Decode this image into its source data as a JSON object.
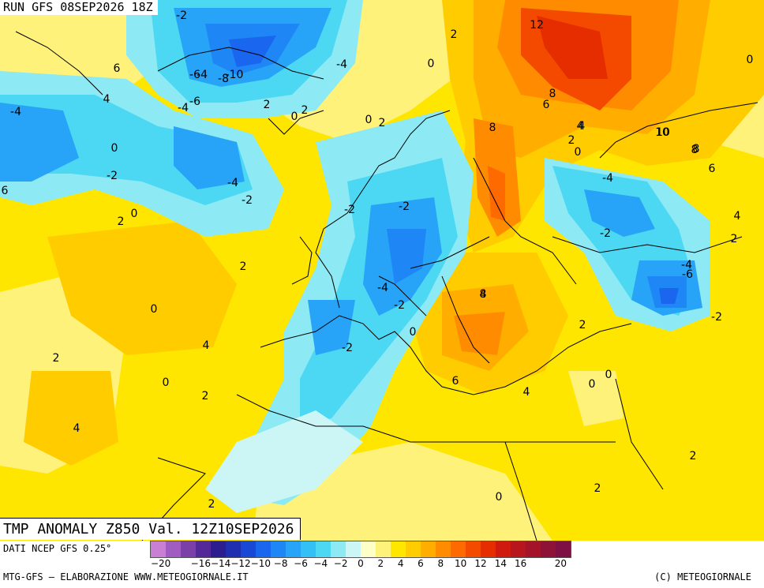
{
  "map": {
    "run_label": "RUN GFS 08SEP2026 18Z",
    "title": "TMP ANOMALY Z850 Val. 12Z10SEP2026",
    "contour_labels": [
      "-2",
      "-6",
      "-4",
      "-8",
      "-10",
      "-4",
      "6",
      "4",
      "-4",
      "-6",
      "-4",
      "0",
      "2",
      "0",
      "2",
      "0",
      "-2",
      "-4",
      "-2",
      "6",
      "0",
      "2",
      "2",
      "0",
      "4",
      "2",
      "0",
      "2",
      "4",
      "2",
      "0",
      "2",
      "-2",
      "-2",
      "-4",
      "-2",
      "0",
      "-2",
      "8",
      "4",
      "10",
      "12",
      "4",
      "8",
      "6",
      "8",
      "4",
      "2",
      "0",
      "10",
      "8",
      "6",
      "-4",
      "-2",
      "4",
      "2",
      "-4",
      "-6",
      "-2",
      "2",
      "8",
      "6",
      "4",
      "0",
      "0",
      "2",
      "2",
      "0",
      "2",
      "0"
    ]
  },
  "legend": {
    "source": "DATI NCEP GFS 0.25°",
    "ticks": [
      "-20",
      "-18",
      "-16",
      "-14",
      "-12",
      "-10",
      "-8",
      "-6",
      "-4",
      "-2",
      "0",
      "2",
      "4",
      "6",
      "8",
      "10",
      "12",
      "14",
      "16",
      "18",
      "20"
    ],
    "tick_labels_shown": [
      "−20",
      "−16",
      "−14",
      "−12",
      "−10",
      "−8",
      "−6",
      "−4",
      "−2",
      "0",
      "2",
      "4",
      "6",
      "8",
      "10",
      "12",
      "14",
      "16",
      "20"
    ],
    "colors": [
      "#c97fd4",
      "#a05cc0",
      "#7a3fa8",
      "#55289a",
      "#2c1e8e",
      "#1f2fb0",
      "#1a48d6",
      "#1a66ee",
      "#1f86f5",
      "#27a4f7",
      "#33c0f6",
      "#4cd8f3",
      "#8de9f4",
      "#ccf6f6",
      "#ffffc8",
      "#fff27a",
      "#ffe600",
      "#ffcc00",
      "#ffae00",
      "#ff8c00",
      "#ff6a00",
      "#f44a00",
      "#e52d00",
      "#d01a10",
      "#b8161e",
      "#a3142a",
      "#8e1238",
      "#7d0f44"
    ]
  },
  "footer": {
    "credit_left": "MTG-GFS — ELABORAZIONE WWW.METEOGIORNALE.IT",
    "credit_right": "(C) METEOGIORNALE"
  }
}
